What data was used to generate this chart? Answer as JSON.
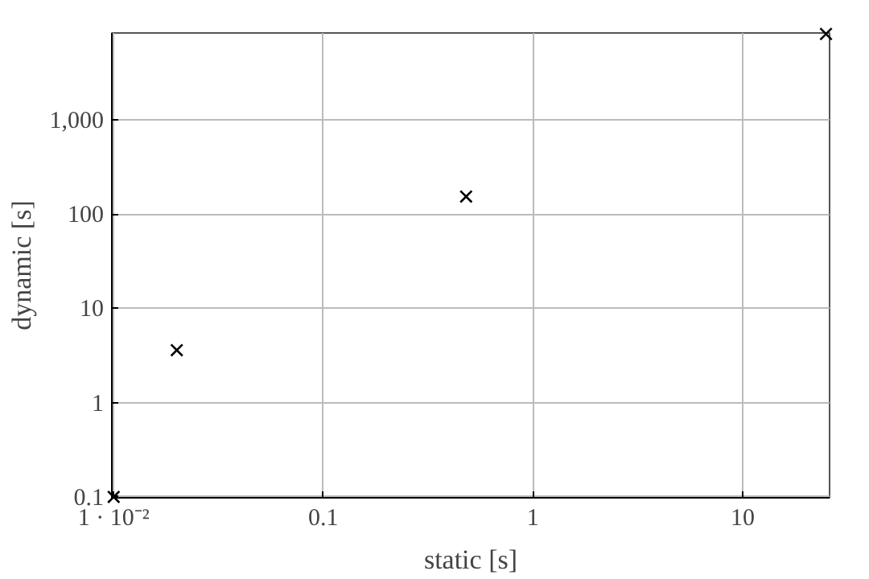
{
  "chart_data": {
    "type": "scatter",
    "xlabel": "static [s]",
    "ylabel": "dynamic [s]",
    "log": "xy",
    "grid": true,
    "marker": "cross",
    "x": [
      0.01,
      0.02,
      0.48,
      25
    ],
    "series": [
      {
        "color": "#000000",
        "values": [
          0.1,
          3.6,
          153,
          8100
        ]
      }
    ],
    "xlim": [
      0.0098,
      26
    ],
    "ylim": [
      0.098,
      8300
    ],
    "xticks": [
      {
        "value": 0.01,
        "label": "1 · 10⁻²"
      },
      0.1,
      1,
      10
    ],
    "yticks": [
      0.1,
      1,
      10,
      100,
      {
        "value": 1000,
        "label": "1,000"
      }
    ]
  }
}
